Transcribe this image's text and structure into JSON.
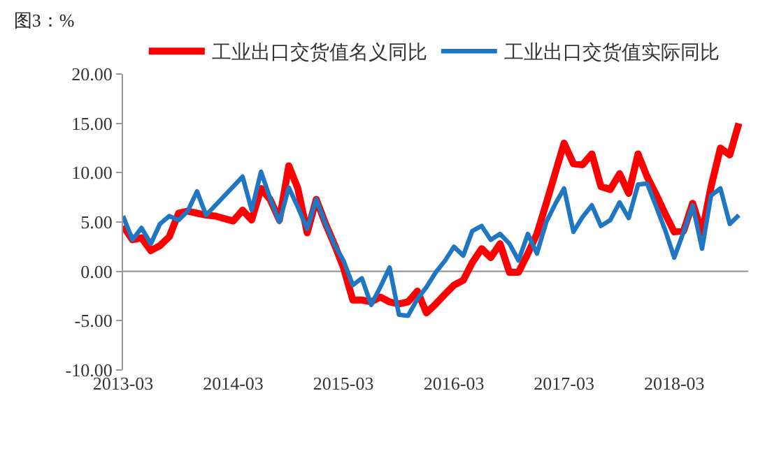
{
  "chart_data": {
    "type": "line",
    "title": "图3：%",
    "series": [
      {
        "name": "工业出口交货值名义同比",
        "color": "#ff0000",
        "x": [
          "2013-03",
          "2013-04",
          "2013-05",
          "2013-06",
          "2013-07",
          "2013-08",
          "2013-09",
          "2013-10",
          "2013-11",
          "2013-12",
          "2014-01",
          "2014-03",
          "2014-04",
          "2014-05",
          "2014-06",
          "2014-07",
          "2014-08",
          "2014-09",
          "2014-10",
          "2014-11",
          "2014-12",
          "2015-01",
          "2015-02",
          "2015-03",
          "2015-04",
          "2015-05",
          "2015-06",
          "2015-07",
          "2015-08",
          "2015-09",
          "2015-10",
          "2015-11",
          "2015-12",
          "2016-01",
          "2016-02",
          "2016-03",
          "2016-04",
          "2016-05",
          "2016-06",
          "2016-07",
          "2016-08",
          "2016-09",
          "2016-10",
          "2016-11",
          "2016-12",
          "2017-01",
          "2017-02",
          "2017-03",
          "2017-04",
          "2017-05",
          "2017-06",
          "2017-07",
          "2017-08",
          "2017-09",
          "2017-10",
          "2017-11",
          "2017-12",
          "2018-01",
          "2018-02",
          "2018-03",
          "2018-04",
          "2018-05",
          "2018-06",
          "2018-07",
          "2018-08",
          "2018-09",
          "2018-10"
        ],
        "values": [
          4.6,
          3.2,
          3.4,
          2.1,
          2.6,
          3.5,
          5.9,
          6.1,
          5.9,
          5.7,
          5.6,
          5.1,
          6.2,
          5.2,
          8.4,
          7.3,
          5.2,
          10.7,
          8.4,
          3.9,
          7.3,
          4.8,
          2.6,
          0.4,
          -2.9,
          -2.9,
          -3.1,
          -2.6,
          -3.1,
          -3.3,
          -3.1,
          -2.0,
          -4.2,
          -3.3,
          -2.3,
          -1.4,
          -0.9,
          0.9,
          2.3,
          1.4,
          2.8,
          -0.1,
          -0.1,
          1.8,
          3.8,
          6.9,
          10.1,
          13.0,
          10.9,
          10.8,
          11.9,
          8.6,
          8.3,
          9.9,
          7.9,
          11.9,
          9.6,
          7.7,
          5.7,
          4.0,
          4.1,
          6.9,
          3.9,
          8.6,
          12.5,
          11.8,
          15.0
        ]
      },
      {
        "name": "工业出口交货值实际同比",
        "color": "#1f77c4",
        "x": [
          "2013-03",
          "2013-04",
          "2013-05",
          "2013-06",
          "2013-07",
          "2013-08",
          "2013-09",
          "2013-10",
          "2013-11",
          "2013-12",
          "2014-04",
          "2014-05",
          "2014-06",
          "2014-07",
          "2014-08",
          "2014-09",
          "2014-10",
          "2014-11",
          "2014-12",
          "2015-01",
          "2015-02",
          "2015-03",
          "2015-04",
          "2015-05",
          "2015-06",
          "2015-07",
          "2015-08",
          "2015-09",
          "2015-10",
          "2015-11",
          "2015-12",
          "2016-01",
          "2016-02",
          "2016-03",
          "2016-04",
          "2016-05",
          "2016-06",
          "2016-07",
          "2016-08",
          "2016-09",
          "2016-10",
          "2016-11",
          "2016-12",
          "2017-01",
          "2017-02",
          "2017-03",
          "2017-04",
          "2017-05",
          "2017-06",
          "2017-07",
          "2017-08",
          "2017-09",
          "2017-10",
          "2017-11",
          "2017-12",
          "2018-01",
          "2018-02",
          "2018-03",
          "2018-04",
          "2018-05",
          "2018-06",
          "2018-07",
          "2018-08",
          "2018-09",
          "2018-10"
        ],
        "values": [
          5.6,
          3.2,
          4.4,
          2.8,
          4.8,
          5.6,
          5.2,
          6.1,
          8.1,
          5.7,
          9.6,
          6.2,
          10.1,
          7.4,
          5.0,
          8.5,
          6.5,
          4.3,
          7.3,
          4.8,
          2.6,
          1.1,
          -1.4,
          -0.7,
          -3.4,
          -1.6,
          0.4,
          -4.4,
          -4.5,
          -2.8,
          -1.6,
          -0.1,
          1.1,
          2.5,
          1.6,
          4.1,
          4.6,
          3.2,
          3.8,
          2.8,
          1.1,
          3.8,
          1.8,
          5.0,
          6.9,
          8.4,
          4.0,
          5.5,
          6.7,
          4.6,
          5.2,
          7.0,
          5.4,
          8.8,
          8.9,
          6.5,
          4.0,
          1.4,
          4.0,
          6.7,
          2.3,
          7.7,
          8.4,
          4.8,
          5.7
        ]
      }
    ],
    "xlim": [
      "2013-03",
      "2018-11"
    ],
    "xticks": [
      "2013-03",
      "2014-03",
      "2015-03",
      "2016-03",
      "2017-03",
      "2018-03"
    ],
    "ylim": [
      -10,
      20
    ],
    "yticks": [
      {
        "value": -10,
        "label": "-10.00"
      },
      {
        "value": -5,
        "label": "-5.00"
      },
      {
        "value": 0,
        "label": "0.00"
      },
      {
        "value": 5,
        "label": "5.00"
      },
      {
        "value": 10,
        "label": "10.00"
      },
      {
        "value": 15,
        "label": "15.00"
      },
      {
        "value": 20,
        "label": "20.00"
      }
    ],
    "ref_lines": [
      {
        "axis": "y",
        "value": 0,
        "color": "#999999"
      }
    ],
    "grid": false,
    "legend": "top",
    "marker": "none",
    "line_style": "solid"
  }
}
